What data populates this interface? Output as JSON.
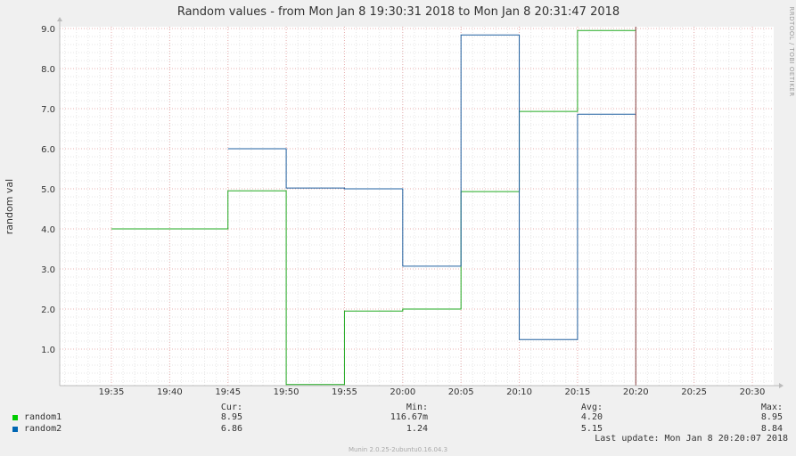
{
  "chart_data": {
    "type": "line",
    "title": "Random values - from Mon Jan  8 19:30:31 2018 to Mon Jan  8 20:31:47 2018",
    "ylabel": "random val",
    "watermark": "RRDTOOL / TOBI OETIKER",
    "x_ticks": [
      "19:35",
      "19:40",
      "19:45",
      "19:50",
      "19:55",
      "20:00",
      "20:05",
      "20:10",
      "20:15",
      "20:20",
      "20:25",
      "20:30"
    ],
    "y_ticks": [
      "1.0",
      "2.0",
      "3.0",
      "4.0",
      "5.0",
      "6.0",
      "7.0",
      "8.0",
      "9.0"
    ],
    "ylim": [
      0.1,
      9.0
    ],
    "xlim_minutes": [
      "19:30:31",
      "20:31:47"
    ],
    "grid": true,
    "series": [
      {
        "name": "random1",
        "color": "#00cc00",
        "line_color": "#22aa22",
        "steps": [
          {
            "from": "19:35",
            "to": "19:45",
            "value": 4.0
          },
          {
            "from": "19:45",
            "to": "19:50",
            "value": 4.95
          },
          {
            "from": "19:50",
            "to": "19:55",
            "value": 0.117
          },
          {
            "from": "19:55",
            "to": "20:00",
            "value": 1.95
          },
          {
            "from": "20:00",
            "to": "20:05",
            "value": 2.0
          },
          {
            "from": "20:05",
            "to": "20:10",
            "value": 4.93
          },
          {
            "from": "20:10",
            "to": "20:15",
            "value": 6.93
          },
          {
            "from": "20:15",
            "to": "20:20",
            "value": 8.95
          }
        ],
        "cur": "8.95",
        "min": "116.67m",
        "avg": "4.20",
        "max": "8.95"
      },
      {
        "name": "random2",
        "color": "#0066b3",
        "line_color": "#2060a0",
        "steps": [
          {
            "from": "19:45",
            "to": "19:50",
            "value": 6.0
          },
          {
            "from": "19:50",
            "to": "19:55",
            "value": 5.02
          },
          {
            "from": "19:55",
            "to": "20:00",
            "value": 5.0
          },
          {
            "from": "20:00",
            "to": "20:05",
            "value": 3.07
          },
          {
            "from": "20:05",
            "to": "20:10",
            "value": 8.84
          },
          {
            "from": "20:10",
            "to": "20:15",
            "value": 1.24
          },
          {
            "from": "20:15",
            "to": "20:20",
            "value": 6.86
          }
        ],
        "cur": "6.86",
        "min": "1.24",
        "avg": "5.15",
        "max": "8.84"
      }
    ]
  },
  "legend_headers": {
    "cur": "Cur:",
    "min": "Min:",
    "avg": "Avg:",
    "max": "Max:"
  },
  "last_update": "Last update:  Mon Jan  8 20:20:07 2018",
  "munin_version": "Munin 2.0.25-2ubuntu0.16.04.3"
}
